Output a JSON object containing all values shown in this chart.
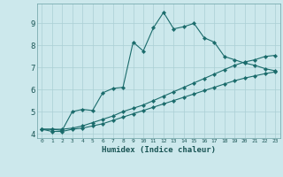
{
  "xlabel": "Humidex (Indice chaleur)",
  "bg_color": "#cce8ec",
  "grid_color": "#aacfd4",
  "line_color": "#1a6b6b",
  "xlim": [
    -0.5,
    23.5
  ],
  "ylim": [
    3.8,
    9.9
  ],
  "xticks": [
    0,
    1,
    2,
    3,
    4,
    5,
    6,
    7,
    8,
    9,
    10,
    11,
    12,
    13,
    14,
    15,
    16,
    17,
    18,
    19,
    20,
    21,
    22,
    23
  ],
  "yticks": [
    4,
    5,
    6,
    7,
    8,
    9
  ],
  "line1_x": [
    0,
    1,
    2,
    3,
    4,
    5,
    6,
    7,
    8,
    9,
    10,
    11,
    12,
    13,
    14,
    15,
    16,
    17,
    18,
    19,
    20,
    21,
    22,
    23
  ],
  "line1_y": [
    4.2,
    4.2,
    4.15,
    5.0,
    5.1,
    5.05,
    5.85,
    6.05,
    6.1,
    8.15,
    7.75,
    8.8,
    9.5,
    8.75,
    8.85,
    9.0,
    8.35,
    8.15,
    7.5,
    7.35,
    7.2,
    7.1,
    6.95,
    6.85
  ],
  "line2_x": [
    0,
    1,
    2,
    3,
    4,
    5,
    6,
    7,
    8,
    9,
    10,
    11,
    12,
    13,
    14,
    15,
    16,
    17,
    18,
    19,
    20,
    21,
    22,
    23
  ],
  "line2_y": [
    4.2,
    4.2,
    4.2,
    4.25,
    4.35,
    4.5,
    4.65,
    4.8,
    5.0,
    5.15,
    5.3,
    5.5,
    5.7,
    5.9,
    6.1,
    6.3,
    6.5,
    6.7,
    6.9,
    7.1,
    7.25,
    7.35,
    7.5,
    7.55
  ],
  "line3_x": [
    0,
    1,
    2,
    3,
    4,
    5,
    6,
    7,
    8,
    9,
    10,
    11,
    12,
    13,
    14,
    15,
    16,
    17,
    18,
    19,
    20,
    21,
    22,
    23
  ],
  "line3_y": [
    4.2,
    4.1,
    4.1,
    4.2,
    4.25,
    4.35,
    4.45,
    4.6,
    4.75,
    4.9,
    5.05,
    5.2,
    5.35,
    5.5,
    5.65,
    5.8,
    5.95,
    6.1,
    6.25,
    6.4,
    6.52,
    6.62,
    6.72,
    6.8
  ]
}
